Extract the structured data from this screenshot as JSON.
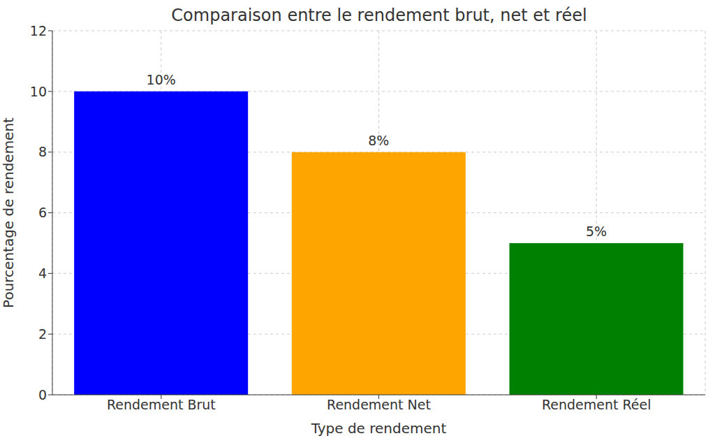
{
  "chart_data": {
    "type": "bar",
    "title": "Comparaison entre le rendement brut, net et réel",
    "x_label": "Type de rendement",
    "y_label": "Pourcentage de rendement",
    "categories": [
      "Rendement Brut",
      "Rendement Net",
      "Rendement Réel"
    ],
    "values": [
      10,
      8,
      5
    ],
    "value_labels": [
      "10%",
      "8%",
      "5%"
    ],
    "colors": [
      "#0000ff",
      "#ffa500",
      "#008000"
    ],
    "ylim": [
      0,
      12
    ],
    "yticks": [
      0,
      2,
      4,
      6,
      8,
      10,
      12
    ],
    "grid": true,
    "data_labels": true
  }
}
